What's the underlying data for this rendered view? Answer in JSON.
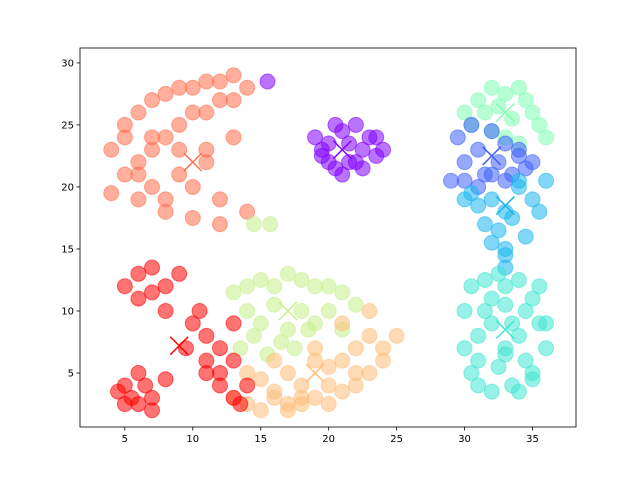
{
  "chart_data": {
    "type": "scatter",
    "xlim": [
      1.7,
      38.2
    ],
    "ylim": [
      0.65,
      31.2
    ],
    "xticks": [
      5,
      10,
      15,
      20,
      25,
      30,
      35
    ],
    "yticks": [
      5,
      10,
      15,
      20,
      25,
      30
    ],
    "grid": false,
    "series": [
      {
        "color": "#ff6e4a",
        "x": [
          4,
          5,
          6,
          7,
          8,
          9,
          10,
          11,
          12,
          13,
          14,
          5,
          6,
          7,
          8,
          9,
          10,
          11,
          12,
          13,
          4,
          6,
          8,
          10,
          12,
          6,
          7,
          9,
          11,
          13,
          8,
          10,
          12,
          14,
          9,
          11,
          5,
          7
        ],
        "y": [
          23,
          25,
          26,
          27,
          27.5,
          28,
          28,
          28.5,
          28.5,
          29,
          28,
          21,
          22,
          23,
          24,
          25,
          26,
          26,
          27,
          27,
          19.5,
          19,
          18,
          17.5,
          17,
          21,
          20,
          21,
          22,
          24,
          19,
          20,
          19,
          18,
          23,
          23,
          24,
          24
        ]
      },
      {
        "color": "#8000ff",
        "x": [
          19,
          19.5,
          20,
          20.5,
          21,
          21.5,
          22,
          22.5,
          23,
          23.5,
          24,
          19.5,
          20.5,
          21.5,
          22.5,
          23.5,
          21,
          22,
          20,
          15.5
        ],
        "y": [
          24,
          22.5,
          23.5,
          21.5,
          24.5,
          22,
          25,
          23,
          24,
          22.5,
          23,
          23,
          25,
          23.5,
          21.5,
          24,
          21,
          22,
          22,
          28.5
        ]
      },
      {
        "color": "#80ffb4",
        "x": [
          30,
          31,
          32,
          33,
          34,
          35,
          36,
          30.5,
          31.5,
          32.5,
          33.5,
          34.5,
          35.5,
          32,
          33,
          34
        ],
        "y": [
          26,
          27,
          28,
          27.5,
          28,
          26,
          24,
          25,
          26,
          26.5,
          25.5,
          27,
          25,
          24.5,
          24,
          23.5
        ]
      },
      {
        "color": "#4062fa",
        "x": [
          29.5,
          30,
          30.5,
          31,
          31.5,
          32,
          32.5,
          33,
          33.5,
          34,
          34.5,
          30,
          31,
          32,
          33,
          34,
          29,
          35
        ],
        "y": [
          24,
          22,
          25,
          23,
          21,
          24.5,
          22,
          23.5,
          21,
          22.5,
          21.5,
          20.5,
          20,
          21,
          20.5,
          23,
          20.5,
          22
        ]
      },
      {
        "color": "#1cb6ee",
        "x": [
          30,
          31,
          32,
          33,
          34,
          35,
          36,
          31.5,
          32.5,
          33.5,
          34.5,
          35.5,
          30.5,
          33,
          34,
          32,
          33,
          33
        ],
        "y": [
          19,
          18.5,
          19,
          18,
          20,
          19,
          20.5,
          17,
          16.5,
          17.5,
          16,
          18,
          19.5,
          15,
          20.5,
          15.5,
          14.5,
          13.5
        ]
      },
      {
        "color": "#40e6d2",
        "x": [
          30,
          30.5,
          31,
          31.5,
          32,
          32.5,
          33,
          33.5,
          34,
          34.5,
          35,
          35.5,
          36,
          30,
          31,
          32,
          33,
          34,
          35,
          36,
          30.5,
          31.5,
          32.5,
          33.5,
          34.5,
          35.5,
          31,
          33,
          35,
          32,
          34,
          33
        ],
        "y": [
          10,
          12,
          8,
          12.5,
          11,
          13,
          12,
          9,
          12.5,
          10,
          11,
          12,
          9,
          7,
          6,
          9,
          7,
          8,
          5,
          7,
          5,
          10,
          5.5,
          4,
          6,
          9,
          4,
          10.5,
          4.5,
          3.5,
          3.5,
          6.5
        ]
      },
      {
        "color": "#c4f08a",
        "x": [
          13,
          14,
          15,
          16,
          17,
          18,
          19,
          20,
          21,
          22,
          14,
          15,
          16,
          17,
          18,
          19,
          20,
          21,
          13.5,
          14.5,
          15.5,
          16.5,
          17.5,
          18.5,
          14.5,
          15.7
        ],
        "y": [
          11.5,
          12,
          12.5,
          12,
          13,
          12.5,
          12,
          12,
          11.5,
          10.5,
          10,
          9,
          10.5,
          8.5,
          10,
          9,
          10,
          8.5,
          7,
          8,
          6.5,
          7.5,
          7,
          8.5,
          17,
          17
        ]
      },
      {
        "color": "#ffbd78",
        "x": [
          13,
          14,
          15,
          16,
          17,
          18,
          19,
          20,
          21,
          22,
          23,
          24,
          25,
          14,
          15,
          16,
          17,
          18,
          19,
          20,
          21,
          22,
          23,
          24,
          16,
          18,
          20,
          22,
          17,
          19,
          21,
          23
        ],
        "y": [
          3,
          2.5,
          2,
          3,
          2,
          2.5,
          3,
          2.5,
          3.5,
          4,
          5,
          6,
          8,
          5,
          4.5,
          6,
          5,
          4,
          6,
          5.5,
          6,
          7,
          8,
          7,
          3.5,
          3,
          4,
          5,
          2.5,
          7,
          9,
          10
        ]
      },
      {
        "color": "#ff0000",
        "x": [
          5,
          6,
          7,
          8,
          9,
          6,
          7,
          8,
          5.5,
          6.5,
          4.5,
          5,
          6,
          7,
          8,
          5,
          6,
          7,
          10,
          11,
          12,
          13,
          11,
          12,
          13,
          14,
          11,
          12,
          13,
          13.5,
          9.5,
          10.5
        ],
        "y": [
          12,
          13,
          13.5,
          12,
          13,
          11,
          11.5,
          10,
          3,
          4,
          3.5,
          2.5,
          5,
          3,
          4.5,
          4,
          2.5,
          2,
          9,
          8,
          7,
          6,
          5,
          4,
          3,
          4,
          6,
          5,
          9,
          2.5,
          7,
          10
        ]
      }
    ],
    "centroids": {
      "x": [
        10,
        21,
        33,
        32,
        33,
        33,
        17,
        19,
        9
      ],
      "y": [
        22,
        23,
        26,
        22.5,
        18.5,
        8.5,
        10,
        5,
        7.2
      ],
      "colors": [
        "#ff6e4a",
        "#8000ff",
        "#80ffb4",
        "#4062fa",
        "#1cb6ee",
        "#40e6d2",
        "#c4f08a",
        "#ffbd78",
        "#ff0000"
      ]
    }
  }
}
